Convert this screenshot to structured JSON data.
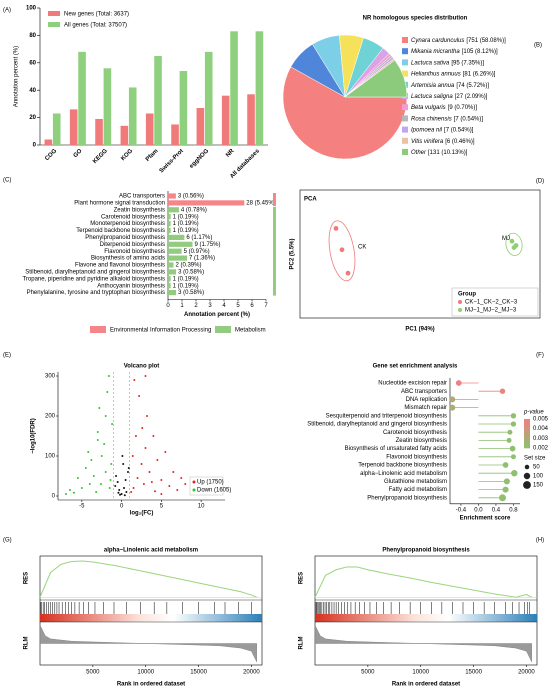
{
  "chart_data": [
    {
      "type": "bar",
      "panel_label": "(A)",
      "y_label": "Annotation percent (%)",
      "categories": [
        "COG",
        "GO",
        "KEGG",
        "KOG",
        "Pfam",
        "Swiss-Prot",
        "eggNOG",
        "NR",
        "All databases"
      ],
      "series": [
        {
          "name": "New genes (Total: 3637)",
          "color": "#f07a7a",
          "values": [
            4,
            26,
            19,
            14,
            23,
            15,
            27,
            36,
            37
          ]
        },
        {
          "name": "All genes (Total: 37507)",
          "color": "#8fd07e",
          "values": [
            23,
            68,
            56,
            42,
            65,
            54,
            68,
            83,
            83
          ]
        }
      ],
      "ylim": [
        0,
        100
      ],
      "yticks": [
        0,
        20,
        40,
        60,
        80,
        100
      ]
    },
    {
      "type": "pie",
      "panel_label": "(B)",
      "title": "NR homologous species distribution",
      "slices": [
        {
          "name": "Cynara cardunculus",
          "value_label": "[751 (58.08%)]",
          "value": 751,
          "color": "#f4807f"
        },
        {
          "name": "Mikania micrantha",
          "value_label": "[105 (8.12%)]",
          "value": 105,
          "color": "#4f86d9"
        },
        {
          "name": "Lactuca sativa",
          "value_label": "[95 (7.35%)]",
          "value": 95,
          "color": "#7dcfe8"
        },
        {
          "name": "Helianthus annuus",
          "value_label": "[81 (6.26%)]",
          "value": 81,
          "color": "#f5e15a"
        },
        {
          "name": "Artemisia annua",
          "value_label": "[74 (5.72%)]",
          "value": 74,
          "color": "#6fd3d6"
        },
        {
          "name": "Lactuca saligna",
          "value_label": "[27 (2.09%)]",
          "value": 27,
          "color": "#d9a3e6"
        },
        {
          "name": "Beta vulgaris",
          "value_label": "[9 (0.70%)]",
          "value": 9,
          "color": "#f29bd6"
        },
        {
          "name": "Rosa chinensis",
          "value_label": "[7 (0.54%)]",
          "value": 7,
          "color": "#b8b8b8"
        },
        {
          "name": "Ipomoea nil",
          "value_label": "[7 (0.54%)]",
          "value": 7,
          "color": "#c4a3f2"
        },
        {
          "name": "Vitis vinifera",
          "value_label": "[6 (0.46%)]",
          "value": 6,
          "color": "#e9c3a1"
        },
        {
          "name": "Other",
          "value_label": "[131 (10.13%)]",
          "value": 131,
          "color": "#8ccb7b"
        }
      ]
    },
    {
      "type": "bar",
      "orientation": "horizontal",
      "panel_label": "(C)",
      "x_label": "Annotation percent (%)",
      "categories": [
        "ABC transporters",
        "Plant hormone signal transduction",
        "Zeatin biosynthesis",
        "Carotenoid biosynthesis",
        "Monoterpenoid biosynthesis",
        "Terpenoid backbone biosynthesis",
        "Phenylpropanoid biosynthesis",
        "Diterpenoid biosynthesis",
        "Flavonoid biosynthesis",
        "Biosynthesis of amino acids",
        "Flavone and flavonol biosynthesis",
        "Stilbenoid, diarylheptanoid and gingerol biosynthesis",
        "Tropane, piperidine and pyridine alkaloid biosynthesis",
        "Anthocyanin biosynthesis",
        "Phenylalanine, tyrosine and tryptophan biosynthesis"
      ],
      "values": [
        0.56,
        5.45,
        0.78,
        0.19,
        0.19,
        0.19,
        1.17,
        1.75,
        0.97,
        1.36,
        0.39,
        0.58,
        0.19,
        0.19,
        0.58
      ],
      "value_labels": [
        "3 (0.56%)",
        "28 (5.45%)",
        "4 (0.78%)",
        "1 (0.19%)",
        "1 (0.19%)",
        "1 (0.19%)",
        "6 (1.17%)",
        "9 (1.75%)",
        "5 (0.97%)",
        "7 (1.36%)",
        "2 (0.39%)",
        "3 (0.58%)",
        "1 (0.19%)",
        "1 (0.19%)",
        "3 (0.58%)"
      ],
      "groups": [
        0,
        0,
        1,
        1,
        1,
        1,
        1,
        1,
        1,
        1,
        1,
        1,
        1,
        1,
        1
      ],
      "legend": [
        {
          "name": "Environmental Information Processing",
          "color": "#f4868a"
        },
        {
          "name": "Metabolism",
          "color": "#93cc80"
        }
      ],
      "xlim": [
        0,
        7
      ],
      "xticks": [
        0,
        1,
        2,
        3,
        4,
        5,
        6,
        7
      ]
    },
    {
      "type": "scatter",
      "panel_label": "(D)",
      "title": "PCA",
      "x_label": "PC1 (94%)",
      "y_label": "PC2 (5.5%)",
      "legend_title": "Group",
      "series": [
        {
          "name": "CK−1_CK−2_CK−3",
          "label": "CK",
          "color": "#f07a7a",
          "x": [
            -42,
            -39,
            -36
          ],
          "values": [
            12,
            2,
            -9
          ]
        },
        {
          "name": "MJ−1_MJ−2_MJ−3",
          "label": "MJ",
          "color": "#8fcf6f",
          "x": [
            46,
            47,
            48
          ],
          "values": [
            6,
            3,
            4
          ]
        }
      ],
      "xlim": [
        -60,
        60
      ],
      "ylim": [
        -30,
        30
      ]
    },
    {
      "type": "scatter",
      "panel_label": "(E)",
      "title": "Volcano plot",
      "x_label": "log₂(FC)",
      "y_label": "−log10(FDR)",
      "point_size": "small",
      "series": [
        {
          "name": "Up (1750)",
          "color": "#e8231f",
          "x": [
            1.5,
            2,
            2.5,
            3,
            3.5,
            4,
            1.2,
            2.8,
            5,
            6,
            7,
            4.5,
            3.2,
            2.2,
            1.8,
            5.5,
            8,
            9,
            10,
            6.5,
            1.4,
            2.6,
            3.8,
            4.2,
            7.5,
            11,
            1.6,
            3,
            5,
            12
          ],
          "values": [
            20,
            45,
            80,
            120,
            60,
            150,
            10,
            30,
            40,
            25,
            15,
            90,
            200,
            250,
            150,
            110,
            30,
            20,
            10,
            60,
            100,
            170,
            35,
            12,
            45,
            5,
            290,
            300,
            5,
            25
          ]
        },
        {
          "name": "Down (1605)",
          "color": "#2fc42a",
          "x": [
            -1.5,
            -2,
            -2.5,
            -3,
            -3.5,
            -4,
            -1.2,
            -2.8,
            -5,
            -6,
            -1.8,
            -4.5,
            -3.2,
            -2.2,
            -1.4,
            -5.5,
            -6.5,
            -3.8,
            -2.6,
            -1.6,
            -4.2,
            -7,
            -3,
            -2,
            -1.3
          ],
          "values": [
            20,
            60,
            100,
            140,
            50,
            30,
            180,
            220,
            20,
            8,
            260,
            70,
            10,
            130,
            40,
            45,
            15,
            90,
            30,
            300,
            110,
            5,
            160,
            200,
            80
          ]
        },
        {
          "color": "#111111",
          "x": [
            0,
            0.3,
            -0.3,
            0.5,
            -0.5,
            0.8,
            -0.7,
            0.2,
            -0.2,
            0.6,
            -0.8,
            0.1,
            0.4,
            -0.4,
            0.9
          ],
          "values": [
            5,
            20,
            15,
            40,
            35,
            60,
            50,
            80,
            3,
            10,
            25,
            100,
            2,
            8,
            70
          ]
        }
      ],
      "vlines": [
        -1,
        1
      ],
      "xlim": [
        -8,
        13
      ],
      "xticks": [
        -5,
        0,
        5,
        10
      ],
      "ylim": [
        -10,
        310
      ],
      "yticks": [
        0,
        100,
        200,
        300
      ]
    },
    {
      "type": "lollipop",
      "panel_label": "(F)",
      "title": "Gene set enrichment analysis",
      "x_label": "Enrichment score",
      "categories": [
        "Nucleotide excision repair",
        "ABC transporters",
        "DNA replication",
        "Mismatch repair",
        "Sesquiterpenoid and triterpenoid biosynthesis",
        "Stilbenoid, diarylheptanoid and gingerol biosynthesis",
        "Carotenoid biosynthesis",
        "Zeatin biosynthesis",
        "Biosynthesis of unsaturated fatty acids",
        "Flavonoid biosynthesis",
        "Terpenoid backbone biosynthesis",
        "alpha−Linolenic acid metabolism",
        "Glutathione metabolism",
        "Fatty acid metabolism",
        "Phenylpropanoid biosynthesis"
      ],
      "values": [
        -0.45,
        0.55,
        -0.6,
        -0.6,
        0.8,
        0.8,
        0.72,
        0.7,
        0.78,
        0.8,
        0.62,
        0.82,
        0.65,
        0.62,
        0.55
      ],
      "pvalues": [
        0.005,
        0.0048,
        0.003,
        0.003,
        0.002,
        0.002,
        0.002,
        0.002,
        0.002,
        0.002,
        0.002,
        0.002,
        0.002,
        0.002,
        0.002
      ],
      "sizes": [
        80,
        70,
        90,
        90,
        70,
        70,
        60,
        60,
        80,
        60,
        80,
        100,
        90,
        90,
        120
      ],
      "pvalue_title": "p-value",
      "pvalue_ticks": [
        0.005,
        0.004,
        0.003,
        0.002
      ],
      "high_color": "#f08080",
      "low_color": "#8fbf6f",
      "size_title": "Set size",
      "size_ticks": [
        50,
        100,
        150
      ],
      "xlim": [
        -0.65,
        0.95
      ],
      "xticks": [
        {
          "value": -0.4,
          "label": "-0.4"
        },
        {
          "value": 0,
          "label": "0.0"
        },
        0.4,
        0.8
      ]
    },
    {
      "type": "gsea",
      "panel_label": "(G)",
      "title": "alpha−Linolenic acid metabolism",
      "res_label": "RES",
      "rlm_label": "RLM",
      "x_label": "Rank in ordered dataset",
      "color": "#9ad67e",
      "res_x": [
        0,
        1000,
        2000,
        3000,
        4000,
        5000,
        7000,
        9000,
        11000,
        13000,
        15000,
        17000,
        19000,
        20000,
        20500
      ],
      "res_values": [
        0,
        0.45,
        0.6,
        0.65,
        0.66,
        0.64,
        0.58,
        0.5,
        0.42,
        0.34,
        0.26,
        0.18,
        0.1,
        0.04,
        0
      ],
      "hits": [
        50,
        150,
        300,
        450,
        600,
        800,
        1000,
        1200,
        1400,
        1600,
        1800,
        2100,
        2400,
        2700,
        3000,
        3300,
        3700,
        4100,
        4600,
        5200,
        6000,
        7000,
        8200,
        9500,
        10800,
        12000,
        13500,
        15000,
        16500,
        17500,
        18800,
        20000
      ],
      "rlm_x": [
        0,
        500,
        1000,
        3000,
        6000,
        10000,
        14000,
        17000,
        19000,
        20000,
        20500
      ],
      "rlm_values": [
        12,
        5,
        3,
        1.5,
        0.8,
        0,
        -0.8,
        -1.5,
        -3,
        -5,
        -12
      ],
      "xlim": [
        0,
        21000
      ],
      "xticks": [
        5000,
        10000,
        15000,
        20000
      ],
      "res_ylim": [
        -0.05,
        0.75
      ],
      "rlm_ylim": [
        -14,
        14
      ]
    },
    {
      "type": "gsea",
      "panel_label": "(H)",
      "title": "Phenylpropanoid biosynthesis",
      "res_label": "RES",
      "rlm_label": "RLM",
      "x_label": "Rank in ordered dataset",
      "color": "#9ad67e",
      "res_x": [
        0,
        1000,
        2000,
        3000,
        4000,
        5000,
        7000,
        9000,
        11000,
        13000,
        15000,
        17000,
        19000,
        20000,
        20500
      ],
      "res_values": [
        0,
        0.4,
        0.5,
        0.55,
        0.55,
        0.5,
        0.42,
        0.35,
        0.27,
        0.2,
        0.13,
        0.06,
        0,
        0.05,
        0
      ],
      "hits": [
        40,
        120,
        200,
        300,
        400,
        500,
        650,
        800,
        950,
        1100,
        1250,
        1400,
        1600,
        1800,
        2000,
        2200,
        2500,
        2800,
        3100,
        3400,
        3800,
        4200,
        4700,
        5200,
        5800,
        6500,
        7200,
        8000,
        9000,
        10000,
        11000,
        12000,
        13000,
        14000,
        15000,
        16000,
        17000,
        18000,
        18700,
        19300,
        19800,
        20100,
        20300
      ],
      "rlm_x": [
        0,
        500,
        1000,
        3000,
        6000,
        10000,
        14000,
        17000,
        19000,
        20000,
        20500
      ],
      "rlm_values": [
        12,
        5,
        3,
        1.5,
        0.8,
        0,
        -0.8,
        -1.5,
        -3,
        -5,
        -12
      ],
      "xlim": [
        0,
        21000
      ],
      "xticks": [
        5000,
        10000,
        15000,
        20000
      ],
      "res_ylim": [
        -0.05,
        0.75
      ],
      "rlm_ylim": [
        -14,
        14
      ]
    }
  ]
}
